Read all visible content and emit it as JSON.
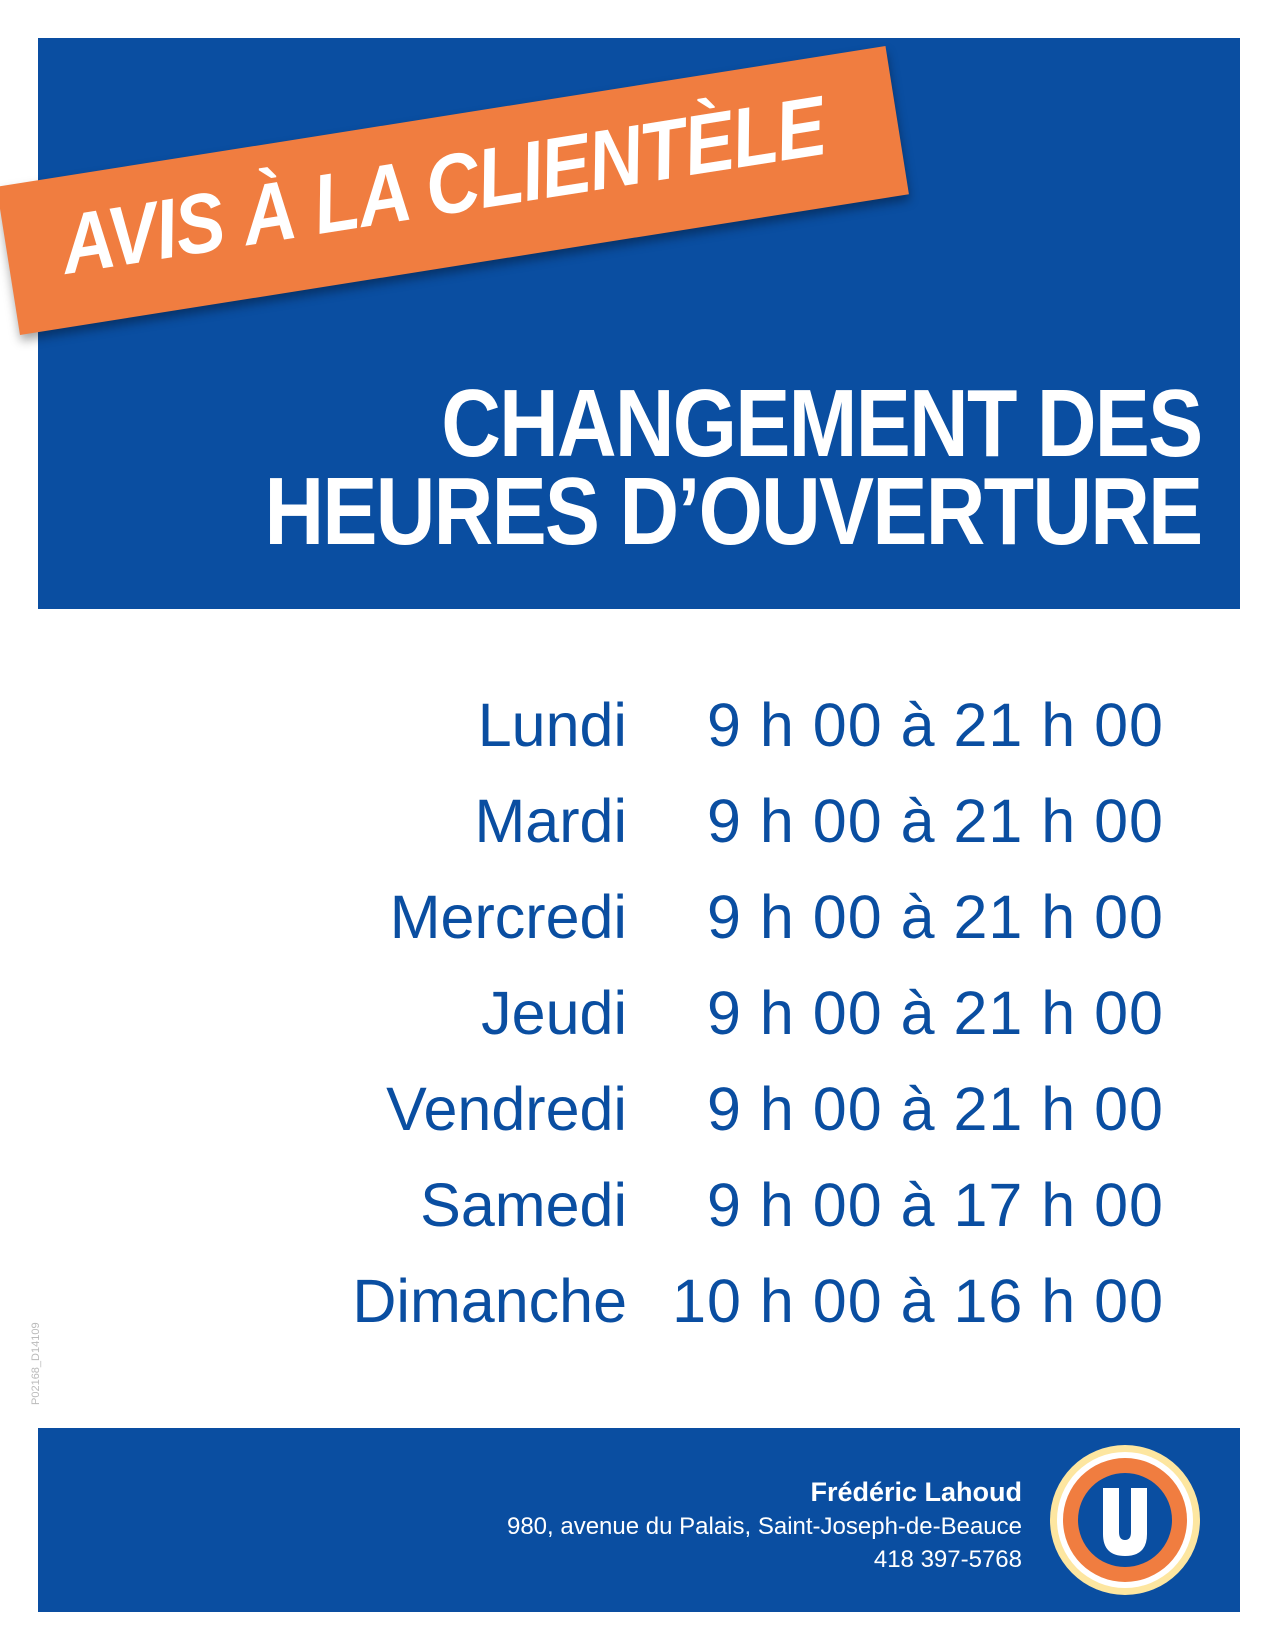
{
  "header": {
    "banner": "AVIS À LA CLIENTÈLE",
    "title": [
      "CHANGEMENT DES",
      "HEURES D’OUVERTURE"
    ]
  },
  "schedule": [
    {
      "day": "Lundi",
      "hours": "9 h 00 à 21 h 00"
    },
    {
      "day": "Mardi",
      "hours": "9 h 00 à 21 h 00"
    },
    {
      "day": "Mercredi",
      "hours": "9 h 00 à 21 h 00"
    },
    {
      "day": "Jeudi",
      "hours": "9 h 00 à 21 h 00"
    },
    {
      "day": "Vendredi",
      "hours": "9 h 00 à 21 h 00"
    },
    {
      "day": "Samedi",
      "hours": "9 h 00 à 17 h 00"
    },
    {
      "day": "Dimanche",
      "hours": "10 h 00 à 16 h 00"
    }
  ],
  "footer": {
    "name": "Frédéric Lahoud",
    "address": "980, avenue du Palais, Saint-Joseph-de-Beauce",
    "phone": "418 397-5768"
  },
  "side_code": "P02168_D14109"
}
